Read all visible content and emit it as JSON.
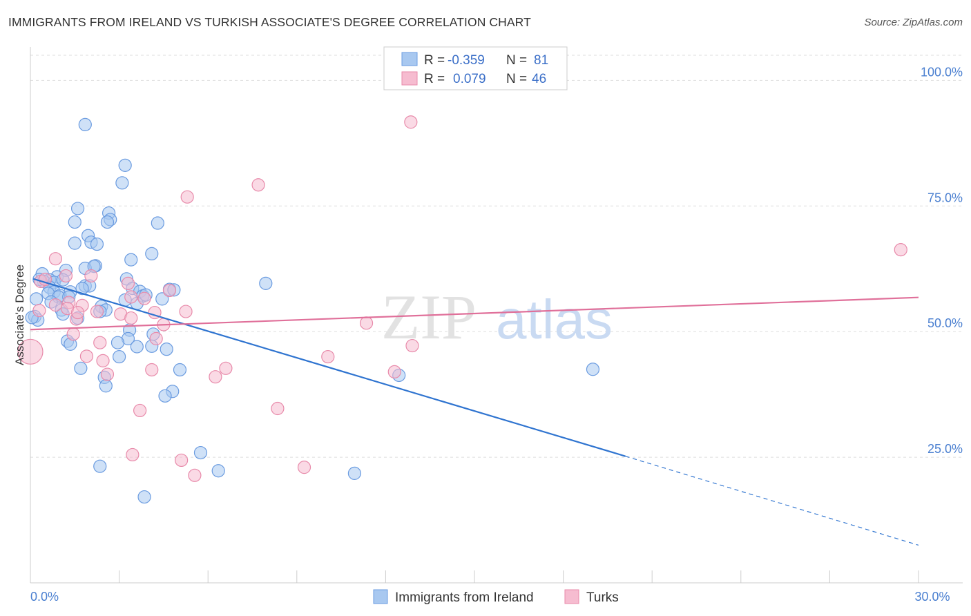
{
  "title": "IMMIGRANTS FROM IRELAND VS TURKISH ASSOCIATE'S DEGREE CORRELATION CHART",
  "source": "Source: ZipAtlas.com",
  "watermark": {
    "zip": "ZIP",
    "atlas": "atlas"
  },
  "colors": {
    "blue_fill": "#a8c8f0",
    "blue_stroke": "#6a9be0",
    "blue_line": "#2f74d0",
    "pink_fill": "#f6bcd0",
    "pink_stroke": "#e88aaa",
    "pink_line": "#e0709a",
    "axis_text": "#4a7fd0",
    "grid": "#dddddd"
  },
  "legend": {
    "r_label": "R =",
    "n_label": "N =",
    "rows": [
      {
        "series": "Immigrants from Ireland",
        "r": "-0.359",
        "n": "81"
      },
      {
        "series": "Turks",
        "r": "0.079",
        "n": "46"
      }
    ]
  },
  "chart_data": {
    "type": "scatter",
    "title": "IMMIGRANTS FROM IRELAND VS TURKISH ASSOCIATE'S DEGREE CORRELATION CHART",
    "xlabel": "",
    "ylabel": "Associate's Degree",
    "xlim": [
      0,
      30
    ],
    "ylim": [
      0,
      105
    ],
    "x_tick_labels": [
      {
        "value": 0,
        "label": "0.0%"
      },
      {
        "value": 30,
        "label": "30.0%"
      }
    ],
    "x_minor_ticks": [
      3,
      6,
      9,
      12,
      15,
      18,
      21,
      24,
      27,
      30
    ],
    "y_ticks": [
      {
        "value": 25,
        "label": "25.0%"
      },
      {
        "value": 50,
        "label": "50.0%"
      },
      {
        "value": 75,
        "label": "75.0%"
      },
      {
        "value": 100,
        "label": "100.0%"
      }
    ],
    "grid": true,
    "legend_position": "top-center",
    "series": [
      {
        "name": "Immigrants from Ireland",
        "color": "#6a9be0",
        "trend": {
          "x0": 0.1,
          "y0": 60.5,
          "x1": 20.1,
          "y1": 25.2,
          "dashed_to_x": 30,
          "dashed_to_y": 7.5
        },
        "points": [
          [
            1.85,
            91.2
          ],
          [
            3.2,
            83.1
          ],
          [
            3.1,
            79.6
          ],
          [
            1.6,
            74.5
          ],
          [
            2.65,
            73.6
          ],
          [
            2.7,
            72.3
          ],
          [
            1.5,
            71.8
          ],
          [
            2.6,
            71.8
          ],
          [
            4.3,
            71.6
          ],
          [
            1.95,
            69.1
          ],
          [
            2.05,
            67.8
          ],
          [
            2.25,
            67.4
          ],
          [
            1.5,
            67.6
          ],
          [
            4.1,
            65.5
          ],
          [
            3.4,
            64.3
          ],
          [
            2.2,
            63.1
          ],
          [
            1.85,
            62.6
          ],
          [
            1.2,
            62.2
          ],
          [
            0.4,
            61.5
          ],
          [
            3.25,
            60.5
          ],
          [
            0.9,
            60.9
          ],
          [
            0.65,
            60.3
          ],
          [
            0.45,
            60.0
          ],
          [
            0.8,
            59.8
          ],
          [
            7.95,
            59.6
          ],
          [
            1.85,
            59.1
          ],
          [
            2.0,
            59.1
          ],
          [
            0.65,
            58.8
          ],
          [
            3.45,
            58.6
          ],
          [
            4.7,
            58.4
          ],
          [
            4.85,
            58.3
          ],
          [
            3.7,
            58.0
          ],
          [
            1.35,
            57.9
          ],
          [
            0.8,
            57.9
          ],
          [
            0.6,
            57.6
          ],
          [
            1.0,
            57.2
          ],
          [
            0.95,
            56.9
          ],
          [
            1.3,
            56.9
          ],
          [
            3.8,
            57.1
          ],
          [
            0.2,
            56.5
          ],
          [
            3.2,
            56.3
          ],
          [
            3.6,
            55.6
          ],
          [
            2.4,
            55.0
          ],
          [
            2.55,
            54.3
          ],
          [
            2.35,
            54.0
          ],
          [
            1.05,
            54.3
          ],
          [
            1.1,
            53.5
          ],
          [
            0.15,
            53.0
          ],
          [
            1.6,
            52.7
          ],
          [
            0.25,
            52.3
          ],
          [
            3.35,
            50.3
          ],
          [
            4.15,
            49.5
          ],
          [
            3.3,
            48.6
          ],
          [
            1.25,
            48.1
          ],
          [
            1.35,
            47.5
          ],
          [
            3.6,
            47.0
          ],
          [
            4.1,
            47.1
          ],
          [
            4.6,
            46.5
          ],
          [
            2.95,
            47.8
          ],
          [
            3.0,
            45.0
          ],
          [
            1.7,
            42.7
          ],
          [
            5.05,
            42.4
          ],
          [
            12.45,
            41.3
          ],
          [
            19.0,
            42.5
          ],
          [
            2.5,
            40.9
          ],
          [
            2.55,
            39.2
          ],
          [
            4.8,
            38.1
          ],
          [
            4.55,
            37.2
          ],
          [
            5.75,
            25.9
          ],
          [
            2.35,
            23.2
          ],
          [
            6.35,
            22.3
          ],
          [
            10.95,
            21.8
          ],
          [
            3.85,
            17.1
          ],
          [
            0.05,
            52.8
          ],
          [
            1.75,
            58.6
          ],
          [
            0.3,
            60.4
          ],
          [
            2.15,
            63.0
          ],
          [
            1.1,
            60.3
          ],
          [
            4.45,
            56.5
          ],
          [
            0.7,
            55.9
          ],
          [
            3.9,
            57.3
          ]
        ]
      },
      {
        "name": "Turks",
        "color": "#e88aaa",
        "trend": {
          "x0": 0.0,
          "y0": 50.4,
          "x1": 30.0,
          "y1": 56.8
        },
        "points": [
          [
            12.85,
            91.7
          ],
          [
            7.7,
            79.2
          ],
          [
            5.3,
            76.8
          ],
          [
            29.4,
            66.3
          ],
          [
            0.85,
            64.5
          ],
          [
            2.05,
            61.1
          ],
          [
            1.2,
            61.1
          ],
          [
            3.3,
            59.6
          ],
          [
            0.35,
            60.0
          ],
          [
            4.7,
            58.2
          ],
          [
            3.4,
            56.9
          ],
          [
            3.85,
            56.6
          ],
          [
            1.3,
            55.8
          ],
          [
            1.75,
            55.2
          ],
          [
            1.25,
            54.6
          ],
          [
            0.3,
            54.2
          ],
          [
            5.25,
            54.0
          ],
          [
            2.25,
            54.0
          ],
          [
            4.2,
            53.8
          ],
          [
            3.05,
            53.5
          ],
          [
            3.4,
            52.7
          ],
          [
            1.55,
            52.5
          ],
          [
            4.5,
            51.4
          ],
          [
            11.35,
            51.7
          ],
          [
            1.45,
            49.5
          ],
          [
            4.25,
            48.6
          ],
          [
            2.35,
            47.8
          ],
          [
            12.9,
            47.2
          ],
          [
            0.0,
            46.0
          ],
          [
            1.9,
            45.1
          ],
          [
            10.05,
            45.0
          ],
          [
            2.45,
            44.2
          ],
          [
            6.6,
            42.7
          ],
          [
            4.1,
            42.4
          ],
          [
            12.3,
            42.0
          ],
          [
            2.6,
            41.5
          ],
          [
            6.25,
            41.0
          ],
          [
            8.35,
            34.7
          ],
          [
            3.7,
            34.3
          ],
          [
            3.45,
            25.5
          ],
          [
            5.1,
            24.4
          ],
          [
            9.25,
            23.0
          ],
          [
            5.55,
            21.4
          ],
          [
            0.85,
            55.3
          ],
          [
            0.5,
            60.4
          ],
          [
            1.6,
            53.8
          ]
        ]
      }
    ]
  },
  "bottom_legend": [
    "Immigrants from Ireland",
    "Turks"
  ]
}
